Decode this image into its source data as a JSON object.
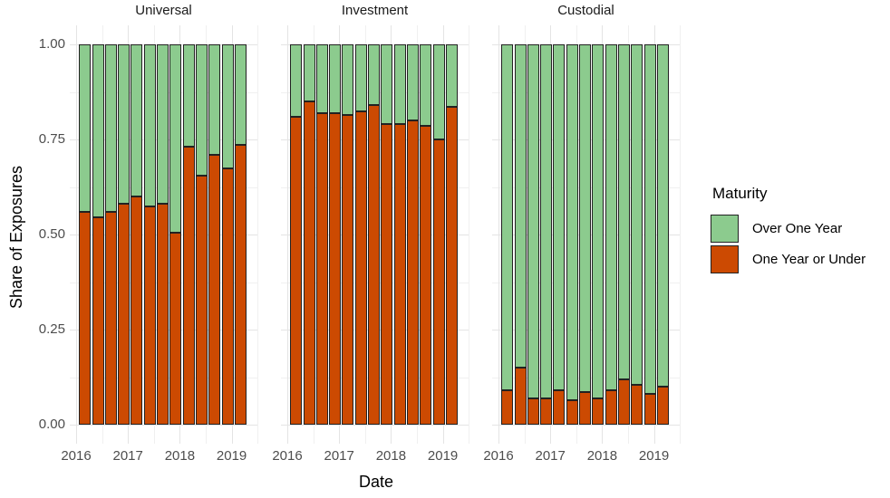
{
  "axes": {
    "y_title": "Share of Exposures",
    "x_title": "Date",
    "y_tick_labels": [
      "1.00",
      "0.75",
      "0.50",
      "0.25",
      "0.00"
    ],
    "x_tick_labels": [
      "2016",
      "2017",
      "2018",
      "2019"
    ]
  },
  "legend": {
    "title": "Maturity",
    "items": [
      {
        "label": "Over One Year",
        "color": "#8ccb8e"
      },
      {
        "label": "One Year or Under",
        "color": "#cc4a02"
      }
    ]
  },
  "colors": {
    "over_one_year": "#8ccb8e",
    "one_year_or_under": "#cc4a02",
    "bar_outline": "#222222",
    "grid_major": "#e4e4e4",
    "grid_minor": "#f0f0f0",
    "tick_text": "#4d4d4d",
    "title_text": "#000000",
    "background": "#ffffff"
  },
  "chart_data": {
    "type": "bar",
    "subtype": "stacked-proportion",
    "title": "",
    "xlabel": "Date",
    "ylabel": "Share of Exposures",
    "ylim": [
      0,
      1
    ],
    "y_major_ticks": [
      0,
      0.25,
      0.5,
      0.75,
      1
    ],
    "y_minor_ticks": [
      0.125,
      0.375,
      0.625,
      0.875
    ],
    "x_ticks": [
      2016,
      2017,
      2018,
      2019
    ],
    "grid": true,
    "legend_position": "right",
    "legend_title": "Maturity",
    "series_names": [
      "Over One Year",
      "One Year or Under"
    ],
    "categories": [
      "2016 Q1",
      "2016 Q2",
      "2016 Q3",
      "2016 Q4",
      "2017 Q1",
      "2017 Q2",
      "2017 Q3",
      "2017 Q4",
      "2018 Q1",
      "2018 Q2",
      "2018 Q3",
      "2018 Q4",
      "2019 Q1"
    ],
    "facets": [
      {
        "name": "Universal",
        "one_year_or_under": [
          0.56,
          0.545,
          0.56,
          0.58,
          0.6,
          0.575,
          0.58,
          0.505,
          0.73,
          0.655,
          0.71,
          0.675,
          0.735
        ],
        "over_one_year": [
          0.44,
          0.455,
          0.44,
          0.42,
          0.4,
          0.425,
          0.42,
          0.495,
          0.27,
          0.345,
          0.29,
          0.325,
          0.265
        ]
      },
      {
        "name": "Investment",
        "one_year_or_under": [
          0.81,
          0.85,
          0.82,
          0.82,
          0.815,
          0.825,
          0.84,
          0.79,
          0.79,
          0.8,
          0.785,
          0.75,
          0.835
        ],
        "over_one_year": [
          0.19,
          0.15,
          0.18,
          0.18,
          0.185,
          0.175,
          0.16,
          0.21,
          0.21,
          0.2,
          0.215,
          0.25,
          0.165
        ]
      },
      {
        "name": "Custodial",
        "one_year_or_under": [
          0.09,
          0.15,
          0.07,
          0.07,
          0.09,
          0.065,
          0.085,
          0.07,
          0.09,
          0.12,
          0.105,
          0.08,
          0.1
        ],
        "over_one_year": [
          0.91,
          0.85,
          0.93,
          0.93,
          0.91,
          0.935,
          0.915,
          0.93,
          0.91,
          0.88,
          0.895,
          0.92,
          0.9
        ]
      }
    ]
  }
}
